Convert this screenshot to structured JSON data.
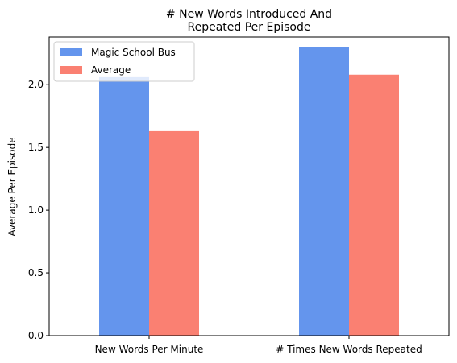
{
  "chart_data": {
    "type": "bar",
    "title_lines": [
      "# New Words Introduced And",
      "Repeated Per Episode"
    ],
    "xlabel": "",
    "ylabel": "Average Per Episode",
    "categories": [
      "New Words Per Minute",
      "# Times New Words Repeated"
    ],
    "series": [
      {
        "name": "Magic School Bus",
        "values": [
          2.06,
          2.3
        ],
        "color": "#6495ED"
      },
      {
        "name": "Average",
        "values": [
          1.63,
          2.08
        ],
        "color": "#FA8072"
      }
    ],
    "ylim": [
      0,
      2.38
    ],
    "yticks": [
      "0.0",
      "0.5",
      "1.0",
      "1.5",
      "2.0"
    ],
    "grid": false,
    "legend_position": "top-left"
  }
}
